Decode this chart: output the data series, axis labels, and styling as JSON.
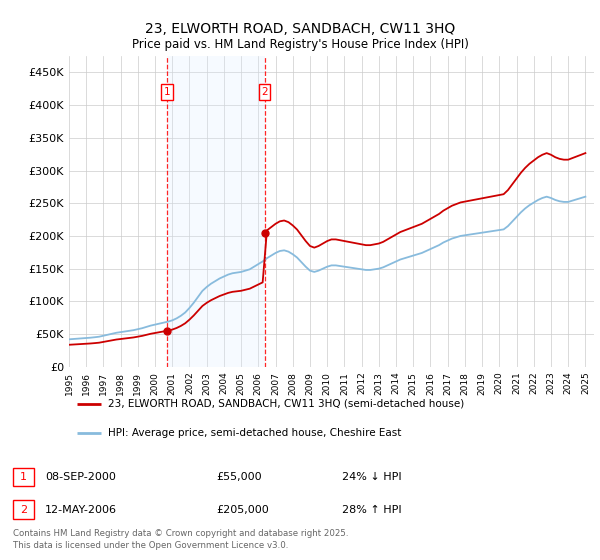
{
  "title": "23, ELWORTH ROAD, SANDBACH, CW11 3HQ",
  "subtitle": "Price paid vs. HM Land Registry's House Price Index (HPI)",
  "legend_line1": "23, ELWORTH ROAD, SANDBACH, CW11 3HQ (semi-detached house)",
  "legend_line2": "HPI: Average price, semi-detached house, Cheshire East",
  "sale1_date": "08-SEP-2000",
  "sale1_price": 55000,
  "sale1_label": "24% ↓ HPI",
  "sale2_date": "12-MAY-2006",
  "sale2_price": 205000,
  "sale2_label": "28% ↑ HPI",
  "footnote1": "Contains HM Land Registry data © Crown copyright and database right 2025.",
  "footnote2": "This data is licensed under the Open Government Licence v3.0.",
  "line_color_red": "#cc0000",
  "line_color_blue": "#88bbdd",
  "shade_color": "#ddeeff",
  "background_color": "#ffffff",
  "grid_color": "#cccccc",
  "ylim_max": 475000,
  "yticks": [
    0,
    50000,
    100000,
    150000,
    200000,
    250000,
    300000,
    350000,
    400000,
    450000
  ],
  "ytick_labels": [
    "£0",
    "£50K",
    "£100K",
    "£150K",
    "£200K",
    "£250K",
    "£300K",
    "£350K",
    "£400K",
    "£450K"
  ],
  "sale1_year": 2000.69,
  "sale2_year": 2006.36,
  "xlim_min": 1995.0,
  "xlim_max": 2025.5
}
